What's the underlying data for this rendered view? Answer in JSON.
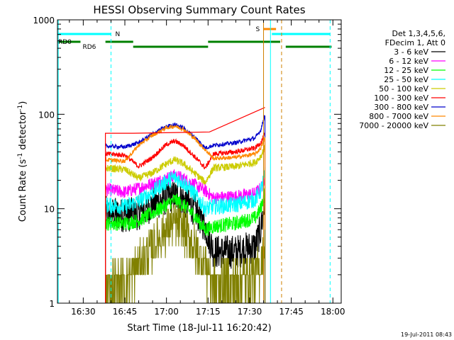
{
  "chart_data": {
    "type": "line",
    "title": "HESSI Observing Summary Count Rates",
    "xlabel": "Start Time (18-Jul-11 16:20:42)",
    "ylabel_main": "Count Rate (s",
    "ylabel_exp1": "-1",
    "ylabel_mid": " detector",
    "ylabel_exp2": "-1",
    "ylabel_end": ")",
    "yscale": "log",
    "ylim": [
      1,
      1000
    ],
    "xlim": [
      "16:20:42",
      "18:03:00"
    ],
    "x_ticks": [
      "16:30",
      "16:45",
      "17:00",
      "17:15",
      "17:30",
      "17:45",
      "18:00"
    ],
    "y_ticks": [
      "1",
      "10",
      "100",
      "1000"
    ],
    "legend_header": [
      "Det 1,3,4,5,6,",
      "FDecim 1, Att 0"
    ],
    "legend_position": "right",
    "timestamp": "19-Jul-2011 08:43",
    "flags": {
      "night_label": "N",
      "saa_label": "S",
      "rd0_label": "RD0",
      "rd6_label": "RD6"
    },
    "series": [
      {
        "name": "3 - 6 keV",
        "color": "#000000",
        "x": [
          "16:38:00",
          "16:45:00",
          "16:50:00",
          "16:55:00",
          "17:00:00",
          "17:03:00",
          "17:06:00",
          "17:10:00",
          "17:14:00",
          "17:17:00",
          "17:25:00",
          "17:32:00",
          "17:34:00",
          "17:35:30"
        ],
        "y": [
          9.0,
          8.5,
          9.0,
          11.0,
          13.0,
          13.5,
          12.5,
          10.0,
          6.5,
          3.5,
          3.5,
          4.0,
          6.0,
          12.0
        ]
      },
      {
        "name": "6 - 12 keV",
        "color": "#ff00ff",
        "x": [
          "16:38:00",
          "16:45:00",
          "16:50:00",
          "16:55:00",
          "17:00:00",
          "17:03:00",
          "17:06:00",
          "17:10:00",
          "17:14:00",
          "17:17:00",
          "17:25:00",
          "17:32:00",
          "17:34:00",
          "17:35:30"
        ],
        "y": [
          16.0,
          15.0,
          16.5,
          18.5,
          21.0,
          22.5,
          21.0,
          18.0,
          15.5,
          13.0,
          13.5,
          14.5,
          16.5,
          21.0
        ]
      },
      {
        "name": "12 - 25 keV",
        "color": "#00ff00",
        "x": [
          "16:38:00",
          "16:45:00",
          "16:50:00",
          "16:55:00",
          "17:00:00",
          "17:03:00",
          "17:06:00",
          "17:10:00",
          "17:14:00",
          "17:17:00",
          "17:25:00",
          "17:32:00",
          "17:34:00",
          "17:35:30"
        ],
        "y": [
          7.0,
          7.0,
          7.5,
          9.0,
          11.0,
          12.5,
          11.0,
          8.5,
          6.0,
          6.5,
          7.0,
          8.0,
          10.0,
          15.0
        ]
      },
      {
        "name": "25 - 50 keV",
        "color": "#00ffff",
        "x": [
          "16:38:00",
          "16:45:00",
          "16:50:00",
          "16:55:00",
          "17:00:00",
          "17:03:00",
          "17:06:00",
          "17:10:00",
          "17:14:00",
          "17:17:00",
          "17:25:00",
          "17:32:00",
          "17:34:00",
          "17:35:30"
        ],
        "y": [
          11.0,
          10.5,
          12.0,
          15.0,
          19.5,
          21.5,
          19.0,
          14.5,
          10.0,
          10.5,
          11.0,
          12.5,
          15.5,
          23.0
        ]
      },
      {
        "name": "50 - 100 keV",
        "color": "#cccc00",
        "x": [
          "16:38:00",
          "16:45:00",
          "16:50:00",
          "16:55:00",
          "17:00:00",
          "17:03:00",
          "17:06:00",
          "17:10:00",
          "17:14:00",
          "17:17:00",
          "17:25:00",
          "17:32:00",
          "17:34:00",
          "17:35:30"
        ],
        "y": [
          27.0,
          26.0,
          21.0,
          24.0,
          30.0,
          33.0,
          30.0,
          24.0,
          19.0,
          27.0,
          28.0,
          31.0,
          36.0,
          45.0
        ]
      },
      {
        "name": "100 - 300 keV",
        "color": "#ff0000",
        "x": [
          "16:38:00",
          "16:45:00",
          "16:50:00",
          "16:55:00",
          "17:00:00",
          "17:03:00",
          "17:06:00",
          "17:10:00",
          "17:14:00",
          "17:17:00",
          "17:25:00",
          "17:32:00",
          "17:34:00",
          "17:35:30"
        ],
        "y": [
          38.0,
          37.0,
          28.0,
          35.0,
          48.0,
          52.0,
          47.0,
          36.0,
          27.0,
          38.0,
          40.0,
          44.0,
          50.0,
          62.0
        ]
      },
      {
        "name": "300 - 800 keV",
        "color": "#0000cc",
        "x": [
          "16:38:00",
          "16:45:00",
          "16:50:00",
          "16:55:00",
          "17:00:00",
          "17:03:00",
          "17:06:00",
          "17:10:00",
          "17:14:00",
          "17:17:00",
          "17:25:00",
          "17:32:00",
          "17:34:00",
          "17:35:30"
        ],
        "y": [
          46.0,
          45.0,
          50.0,
          62.0,
          74.0,
          78.0,
          72.0,
          58.0,
          44.0,
          47.0,
          50.0,
          56.0,
          68.0,
          100.0
        ]
      },
      {
        "name": "800 - 7000 keV",
        "color": "#ff8800",
        "x": [
          "16:38:00",
          "16:45:00",
          "16:50:00",
          "16:55:00",
          "17:00:00",
          "17:03:00",
          "17:06:00",
          "17:10:00",
          "17:14:00",
          "17:17:00",
          "17:25:00",
          "17:32:00",
          "17:34:00",
          "17:35:30"
        ],
        "y": [
          33.0,
          32.0,
          47.0,
          60.0,
          72.0,
          75.0,
          70.0,
          56.0,
          42.0,
          34.0,
          35.0,
          38.0,
          44.0,
          56.0
        ]
      },
      {
        "name": "7000 - 20000 keV",
        "color": "#808000",
        "x": [
          "16:38:00",
          "16:45:00",
          "16:50:00",
          "16:55:00",
          "17:00:00",
          "17:03:00",
          "17:06:00",
          "17:10:00",
          "17:14:00",
          "17:17:00",
          "17:25:00",
          "17:32:00",
          "17:34:00",
          "17:35:30"
        ],
        "y": [
          1.6,
          1.7,
          2.5,
          4.0,
          6.0,
          7.0,
          6.0,
          4.0,
          2.5,
          1.6,
          1.8,
          2.0,
          2.5,
          4.0
        ]
      }
    ],
    "red_top_envelope": {
      "x": [
        "16:38:00",
        "16:48:00",
        "17:15:30",
        "17:35:30"
      ],
      "y": [
        63,
        63,
        65,
        118
      ]
    },
    "night_intervals": [
      [
        "16:20:42",
        "16:40:00"
      ],
      [
        "17:38:00",
        "17:59:00"
      ]
    ],
    "saa_intervals": [
      [
        "17:35:00",
        "17:39:30"
      ]
    ],
    "rd0_intervals": [
      [
        "16:20:42",
        "16:29:00"
      ],
      [
        "16:38:00",
        "16:48:00"
      ],
      [
        "17:15:00",
        "17:41:00"
      ]
    ],
    "rd6_intervals": [
      [
        "16:48:00",
        "17:15:00"
      ],
      [
        "17:43:00",
        "17:59:30"
      ]
    ],
    "vlines": [
      {
        "t": "16:21:00",
        "color": "#00ffff",
        "style": "solid"
      },
      {
        "t": "16:40:00",
        "color": "#00ffff",
        "style": "dashed"
      },
      {
        "t": "17:35:00",
        "color": "#d08000",
        "style": "solid"
      },
      {
        "t": "17:37:30",
        "color": "#00ffff",
        "style": "solid"
      },
      {
        "t": "17:41:30",
        "color": "#d08000",
        "style": "dashed"
      },
      {
        "t": "17:59:00",
        "color": "#00ffff",
        "style": "dashed"
      }
    ]
  }
}
